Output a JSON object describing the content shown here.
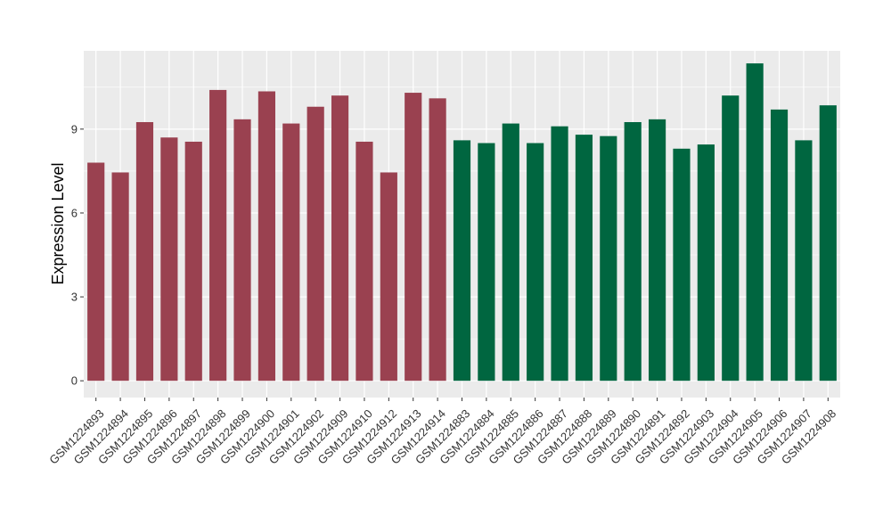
{
  "chart_data": {
    "type": "bar",
    "title": "",
    "xlabel": "",
    "ylabel": "Expression Level",
    "ylim": [
      -0.6,
      11.8
    ],
    "yticks": [
      0,
      3,
      6,
      9
    ],
    "grid": true,
    "colors": {
      "group_a": "#9a4150",
      "group_b": "#006640",
      "panel_bg": "#ebebeb",
      "grid": "#ffffff"
    },
    "categories": [
      "GSM1224893",
      "GSM1224894",
      "GSM1224895",
      "GSM1224896",
      "GSM1224897",
      "GSM1224898",
      "GSM1224899",
      "GSM1224900",
      "GSM1224901",
      "GSM1224902",
      "GSM1224909",
      "GSM1224910",
      "GSM1224912",
      "GSM1224913",
      "GSM1224914",
      "GSM1224883",
      "GSM1224884",
      "GSM1224885",
      "GSM1224886",
      "GSM1224887",
      "GSM1224888",
      "GSM1224889",
      "GSM1224890",
      "GSM1224891",
      "GSM1224892",
      "GSM1224903",
      "GSM1224904",
      "GSM1224905",
      "GSM1224906",
      "GSM1224907",
      "GSM1224908"
    ],
    "values": [
      7.8,
      7.45,
      9.25,
      8.7,
      8.55,
      10.4,
      9.35,
      10.35,
      9.2,
      9.8,
      10.2,
      8.55,
      7.45,
      10.3,
      10.1,
      8.6,
      8.5,
      9.2,
      8.5,
      9.1,
      8.8,
      8.75,
      9.25,
      9.35,
      8.3,
      8.45,
      10.2,
      11.35,
      9.7,
      8.6,
      9.85
    ],
    "groups": [
      "a",
      "a",
      "a",
      "a",
      "a",
      "a",
      "a",
      "a",
      "a",
      "a",
      "a",
      "a",
      "a",
      "a",
      "a",
      "b",
      "b",
      "b",
      "b",
      "b",
      "b",
      "b",
      "b",
      "b",
      "b",
      "b",
      "b",
      "b",
      "b",
      "b",
      "b"
    ]
  }
}
